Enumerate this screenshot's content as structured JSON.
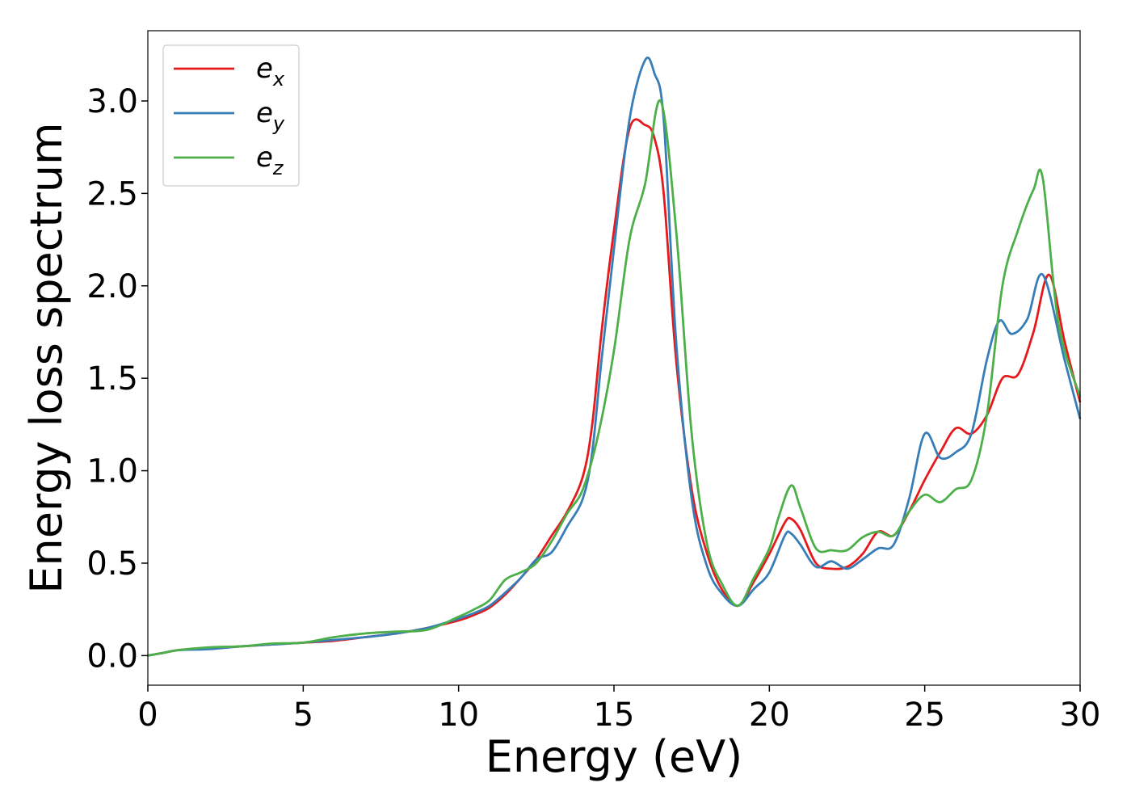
{
  "chart_data": {
    "type": "line",
    "title": "",
    "xlabel": "Energy (eV)",
    "ylabel": "Energy loss spectrum",
    "xlim": [
      0,
      30
    ],
    "ylim": [
      -0.16,
      3.38
    ],
    "x_ticks": [
      "0",
      "5",
      "10",
      "15",
      "20",
      "25",
      "30"
    ],
    "y_ticks": [
      "0.0",
      "0.5",
      "1.0",
      "1.5",
      "2.0",
      "2.5",
      "3.0"
    ],
    "x_tick_values": [
      0,
      5,
      10,
      15,
      20,
      25,
      30
    ],
    "y_tick_values": [
      0.0,
      0.5,
      1.0,
      1.5,
      2.0,
      2.5,
      3.0
    ],
    "grid": false,
    "legend_position": "top-left",
    "series": [
      {
        "name": "e",
        "subscript": "x",
        "color": "#e41a1c",
        "points": [
          [
            0,
            0
          ],
          [
            0.5,
            0.015
          ],
          [
            1,
            0.03
          ],
          [
            2,
            0.04
          ],
          [
            3,
            0.05
          ],
          [
            4,
            0.06
          ],
          [
            5,
            0.07
          ],
          [
            6,
            0.08
          ],
          [
            7,
            0.1
          ],
          [
            8,
            0.12
          ],
          [
            9,
            0.15
          ],
          [
            10,
            0.19
          ],
          [
            10.5,
            0.22
          ],
          [
            11,
            0.26
          ],
          [
            11.5,
            0.33
          ],
          [
            12,
            0.42
          ],
          [
            12.5,
            0.52
          ],
          [
            13,
            0.65
          ],
          [
            13.5,
            0.78
          ],
          [
            14,
            0.97
          ],
          [
            14.3,
            1.25
          ],
          [
            14.6,
            1.75
          ],
          [
            15,
            2.3
          ],
          [
            15.5,
            2.85
          ],
          [
            16,
            2.87
          ],
          [
            16.3,
            2.8
          ],
          [
            16.6,
            2.5
          ],
          [
            17,
            1.6
          ],
          [
            17.5,
            0.9
          ],
          [
            18,
            0.55
          ],
          [
            18.5,
            0.35
          ],
          [
            19,
            0.27
          ],
          [
            19.5,
            0.4
          ],
          [
            20,
            0.55
          ],
          [
            20.5,
            0.72
          ],
          [
            20.7,
            0.74
          ],
          [
            21,
            0.68
          ],
          [
            21.5,
            0.5
          ],
          [
            22,
            0.47
          ],
          [
            22.5,
            0.48
          ],
          [
            23,
            0.55
          ],
          [
            23.5,
            0.67
          ],
          [
            24,
            0.65
          ],
          [
            24.5,
            0.78
          ],
          [
            25,
            0.95
          ],
          [
            25.5,
            1.1
          ],
          [
            26,
            1.23
          ],
          [
            26.5,
            1.2
          ],
          [
            27,
            1.3
          ],
          [
            27.5,
            1.5
          ],
          [
            28,
            1.52
          ],
          [
            28.5,
            1.75
          ],
          [
            29,
            2.06
          ],
          [
            29.5,
            1.7
          ],
          [
            30,
            1.37
          ]
        ]
      },
      {
        "name": "e",
        "subscript": "y",
        "color": "#377eb8",
        "points": [
          [
            0,
            0
          ],
          [
            0.5,
            0.015
          ],
          [
            1,
            0.03
          ],
          [
            2,
            0.035
          ],
          [
            3,
            0.05
          ],
          [
            4,
            0.06
          ],
          [
            5,
            0.07
          ],
          [
            6,
            0.085
          ],
          [
            7,
            0.1
          ],
          [
            8,
            0.12
          ],
          [
            9,
            0.15
          ],
          [
            10,
            0.2
          ],
          [
            10.5,
            0.23
          ],
          [
            11,
            0.27
          ],
          [
            11.5,
            0.34
          ],
          [
            12,
            0.42
          ],
          [
            12.5,
            0.52
          ],
          [
            13,
            0.56
          ],
          [
            13.5,
            0.7
          ],
          [
            14,
            0.85
          ],
          [
            14.3,
            1.1
          ],
          [
            14.6,
            1.6
          ],
          [
            15,
            2.2
          ],
          [
            15.5,
            2.9
          ],
          [
            16,
            3.22
          ],
          [
            16.3,
            3.15
          ],
          [
            16.6,
            2.9
          ],
          [
            17,
            1.7
          ],
          [
            17.5,
            0.85
          ],
          [
            18,
            0.48
          ],
          [
            18.5,
            0.33
          ],
          [
            19,
            0.27
          ],
          [
            19.5,
            0.36
          ],
          [
            20,
            0.45
          ],
          [
            20.5,
            0.65
          ],
          [
            20.7,
            0.66
          ],
          [
            21,
            0.6
          ],
          [
            21.5,
            0.48
          ],
          [
            22,
            0.51
          ],
          [
            22.5,
            0.47
          ],
          [
            23,
            0.52
          ],
          [
            23.5,
            0.58
          ],
          [
            24,
            0.6
          ],
          [
            24.5,
            0.85
          ],
          [
            25,
            1.2
          ],
          [
            25.5,
            1.07
          ],
          [
            26,
            1.1
          ],
          [
            26.5,
            1.2
          ],
          [
            27,
            1.6
          ],
          [
            27.4,
            1.81
          ],
          [
            27.8,
            1.74
          ],
          [
            28.3,
            1.82
          ],
          [
            28.8,
            2.06
          ],
          [
            29.5,
            1.6
          ],
          [
            30,
            1.28
          ]
        ]
      },
      {
        "name": "e",
        "subscript": "z",
        "color": "#4daf4a",
        "points": [
          [
            0,
            0
          ],
          [
            0.5,
            0.015
          ],
          [
            1,
            0.03
          ],
          [
            2,
            0.045
          ],
          [
            3,
            0.05
          ],
          [
            4,
            0.065
          ],
          [
            5,
            0.07
          ],
          [
            6,
            0.1
          ],
          [
            7,
            0.12
          ],
          [
            8,
            0.13
          ],
          [
            9,
            0.14
          ],
          [
            10,
            0.21
          ],
          [
            10.5,
            0.25
          ],
          [
            11,
            0.3
          ],
          [
            11.5,
            0.41
          ],
          [
            12,
            0.45
          ],
          [
            12.5,
            0.5
          ],
          [
            13,
            0.62
          ],
          [
            13.5,
            0.77
          ],
          [
            14,
            0.9
          ],
          [
            14.5,
            1.2
          ],
          [
            15,
            1.65
          ],
          [
            15.5,
            2.25
          ],
          [
            16,
            2.55
          ],
          [
            16.5,
            3.0
          ],
          [
            17,
            2.3
          ],
          [
            17.5,
            1.2
          ],
          [
            18,
            0.6
          ],
          [
            18.5,
            0.38
          ],
          [
            19,
            0.27
          ],
          [
            19.5,
            0.42
          ],
          [
            20,
            0.58
          ],
          [
            20.3,
            0.75
          ],
          [
            20.7,
            0.92
          ],
          [
            21,
            0.8
          ],
          [
            21.5,
            0.58
          ],
          [
            22,
            0.57
          ],
          [
            22.5,
            0.57
          ],
          [
            23,
            0.64
          ],
          [
            23.5,
            0.67
          ],
          [
            24,
            0.65
          ],
          [
            24.5,
            0.78
          ],
          [
            25,
            0.87
          ],
          [
            25.5,
            0.83
          ],
          [
            26,
            0.9
          ],
          [
            26.5,
            0.95
          ],
          [
            27,
            1.3
          ],
          [
            27.5,
            2.0
          ],
          [
            28,
            2.3
          ],
          [
            28.5,
            2.52
          ],
          [
            28.8,
            2.58
          ],
          [
            29.3,
            1.8
          ],
          [
            30,
            1.4
          ]
        ]
      }
    ]
  }
}
